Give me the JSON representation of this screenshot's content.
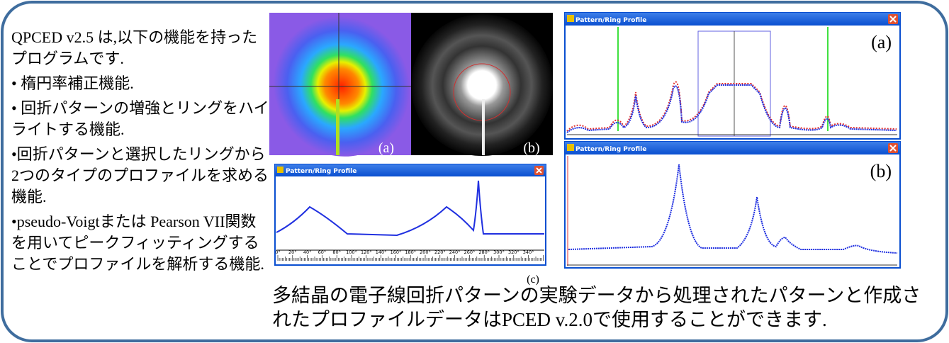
{
  "intro": {
    "paragraphs": [
      "QPCED v2.5 は,以下の機能を持ったプログラムです.",
      "• 楕円率補正機能.",
      "• 回折パターンの増強とリングをハイライトする機能.",
      "•回折パターンと選択したリングから2つのタイプのプロファイルを求める機能.",
      "•pseudo-Voigtまたは Pearson VII関数を用いてピークフィッティングすることでプロファイルを解析する機能."
    ]
  },
  "images": {
    "labels": [
      "(a)",
      "(b)"
    ]
  },
  "profile_windows": [
    {
      "title": "Pattern/Ring Profile",
      "label": "(a)"
    },
    {
      "title": "Pattern/Ring Profile",
      "label": "(b)"
    },
    {
      "title": "Pattern/Ring Profile",
      "label": "(c)",
      "angle_ticks": [
        "0°",
        "20°",
        "40°",
        "60°",
        "80°",
        "100°",
        "120°",
        "140°",
        "160°",
        "180°",
        "200°",
        "220°",
        "240°",
        "260°",
        "280°",
        "300°",
        "320°",
        "340°"
      ]
    }
  ],
  "caption": "多結晶の電子線回折パターンの実験データから処理されたパターンと作成されたプロファイルデータはPCED v.2.0で使用することができます."
}
